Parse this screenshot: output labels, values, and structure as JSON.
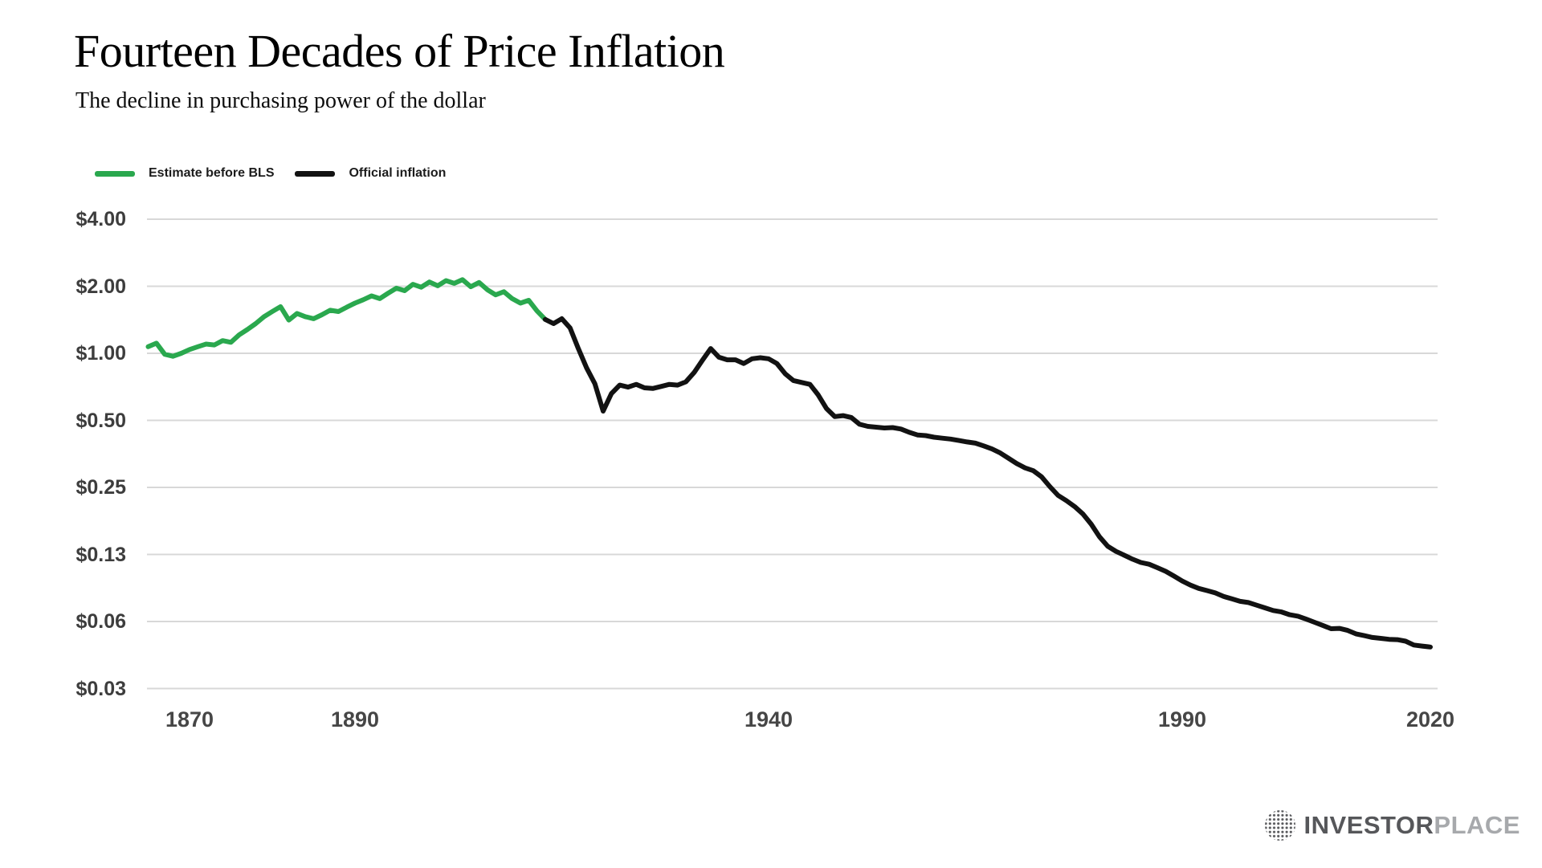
{
  "colors": {
    "accent_green": "#2aa84e",
    "line_black": "#121212",
    "grid": "#d8d8d8",
    "axis_label": "#3d3d3d",
    "logo_primary": "#56575a",
    "logo_secondary": "#a7a9ac"
  },
  "logo": {
    "brand_primary": "INVESTOR",
    "brand_secondary": "PLACE"
  },
  "chart_data": {
    "type": "line",
    "title": "Fourteen Decades of Price Inflation",
    "subtitle": "The decline in purchasing power of the dollar",
    "y_scale": "log2",
    "grid": "horizontal",
    "legend_position": "top-left",
    "xlim": [
      1864.8,
      2021
    ],
    "y_ticks": [
      {
        "label": "$4.00",
        "value": 4.0
      },
      {
        "label": "$2.00",
        "value": 2.0
      },
      {
        "label": "$1.00",
        "value": 1.0
      },
      {
        "label": "$0.50",
        "value": 0.5
      },
      {
        "label": "$0.25",
        "value": 0.25
      },
      {
        "label": "$0.13",
        "value": 0.125
      },
      {
        "label": "$0.06",
        "value": 0.0625
      },
      {
        "label": "$0.03",
        "value": 0.03125
      }
    ],
    "x_ticks": [
      {
        "label": "1870",
        "year": 1870
      },
      {
        "label": "1890",
        "year": 1890
      },
      {
        "label": "1940",
        "year": 1940
      },
      {
        "label": "1990",
        "year": 1990
      },
      {
        "label": "2020",
        "year": 2020
      }
    ],
    "series": [
      {
        "name": "Estimate before BLS",
        "color": "#2aa84e",
        "points": [
          [
            1865,
            1.07
          ],
          [
            1866,
            1.11
          ],
          [
            1867,
            0.99
          ],
          [
            1868,
            0.97
          ],
          [
            1869,
            1.0
          ],
          [
            1870,
            1.04
          ],
          [
            1871,
            1.07
          ],
          [
            1872,
            1.1
          ],
          [
            1873,
            1.09
          ],
          [
            1874,
            1.14
          ],
          [
            1875,
            1.12
          ],
          [
            1876,
            1.21
          ],
          [
            1877,
            1.28
          ],
          [
            1878,
            1.36
          ],
          [
            1879,
            1.46
          ],
          [
            1880,
            1.54
          ],
          [
            1881,
            1.62
          ],
          [
            1882,
            1.41
          ],
          [
            1883,
            1.51
          ],
          [
            1884,
            1.46
          ],
          [
            1885,
            1.43
          ],
          [
            1886,
            1.49
          ],
          [
            1887,
            1.56
          ],
          [
            1888,
            1.54
          ],
          [
            1889,
            1.61
          ],
          [
            1890,
            1.68
          ],
          [
            1891,
            1.74
          ],
          [
            1892,
            1.81
          ],
          [
            1893,
            1.76
          ],
          [
            1894,
            1.86
          ],
          [
            1895,
            1.96
          ],
          [
            1896,
            1.91
          ],
          [
            1897,
            2.04
          ],
          [
            1898,
            1.98
          ],
          [
            1899,
            2.09
          ],
          [
            1900,
            2.01
          ],
          [
            1901,
            2.12
          ],
          [
            1902,
            2.06
          ],
          [
            1903,
            2.14
          ],
          [
            1904,
            1.99
          ],
          [
            1905,
            2.08
          ],
          [
            1906,
            1.93
          ],
          [
            1907,
            1.83
          ],
          [
            1908,
            1.89
          ],
          [
            1909,
            1.76
          ],
          [
            1910,
            1.68
          ],
          [
            1911,
            1.73
          ],
          [
            1912,
            1.55
          ],
          [
            1913,
            1.42
          ]
        ]
      },
      {
        "name": "Official inflation",
        "color": "#121212",
        "points": [
          [
            1913,
            1.42
          ],
          [
            1914,
            1.36
          ],
          [
            1915,
            1.43
          ],
          [
            1916,
            1.3
          ],
          [
            1917,
            1.05
          ],
          [
            1918,
            0.86
          ],
          [
            1919,
            0.73
          ],
          [
            1920,
            0.55
          ],
          [
            1921,
            0.66
          ],
          [
            1922,
            0.72
          ],
          [
            1923,
            0.705
          ],
          [
            1924,
            0.725
          ],
          [
            1925,
            0.7
          ],
          [
            1926,
            0.695
          ],
          [
            1927,
            0.71
          ],
          [
            1928,
            0.725
          ],
          [
            1929,
            0.72
          ],
          [
            1930,
            0.745
          ],
          [
            1931,
            0.82
          ],
          [
            1932,
            0.93
          ],
          [
            1933,
            1.05
          ],
          [
            1934,
            0.96
          ],
          [
            1935,
            0.935
          ],
          [
            1936,
            0.935
          ],
          [
            1937,
            0.9
          ],
          [
            1938,
            0.945
          ],
          [
            1939,
            0.955
          ],
          [
            1940,
            0.945
          ],
          [
            1941,
            0.9
          ],
          [
            1942,
            0.81
          ],
          [
            1943,
            0.755
          ],
          [
            1944,
            0.74
          ],
          [
            1945,
            0.725
          ],
          [
            1946,
            0.65
          ],
          [
            1947,
            0.565
          ],
          [
            1948,
            0.52
          ],
          [
            1949,
            0.525
          ],
          [
            1950,
            0.515
          ],
          [
            1951,
            0.48
          ],
          [
            1952,
            0.47
          ],
          [
            1953,
            0.466
          ],
          [
            1954,
            0.462
          ],
          [
            1955,
            0.464
          ],
          [
            1956,
            0.457
          ],
          [
            1957,
            0.442
          ],
          [
            1958,
            0.43
          ],
          [
            1959,
            0.427
          ],
          [
            1960,
            0.42
          ],
          [
            1961,
            0.416
          ],
          [
            1962,
            0.412
          ],
          [
            1963,
            0.406
          ],
          [
            1964,
            0.4
          ],
          [
            1965,
            0.395
          ],
          [
            1966,
            0.384
          ],
          [
            1967,
            0.372
          ],
          [
            1968,
            0.357
          ],
          [
            1969,
            0.338
          ],
          [
            1970,
            0.32
          ],
          [
            1971,
            0.306
          ],
          [
            1972,
            0.297
          ],
          [
            1973,
            0.279
          ],
          [
            1974,
            0.252
          ],
          [
            1975,
            0.23
          ],
          [
            1976,
            0.218
          ],
          [
            1977,
            0.205
          ],
          [
            1978,
            0.19
          ],
          [
            1979,
            0.171
          ],
          [
            1980,
            0.15
          ],
          [
            1981,
            0.136
          ],
          [
            1982,
            0.129
          ],
          [
            1983,
            0.124
          ],
          [
            1984,
            0.119
          ],
          [
            1985,
            0.115
          ],
          [
            1986,
            0.113
          ],
          [
            1987,
            0.109
          ],
          [
            1988,
            0.105
          ],
          [
            1989,
            0.1
          ],
          [
            1990,
            0.095
          ],
          [
            1991,
            0.091
          ],
          [
            1992,
            0.088
          ],
          [
            1993,
            0.086
          ],
          [
            1994,
            0.084
          ],
          [
            1995,
            0.081
          ],
          [
            1996,
            0.079
          ],
          [
            1997,
            0.077
          ],
          [
            1998,
            0.076
          ],
          [
            1999,
            0.074
          ],
          [
            2000,
            0.072
          ],
          [
            2001,
            0.07
          ],
          [
            2002,
            0.069
          ],
          [
            2003,
            0.067
          ],
          [
            2004,
            0.066
          ],
          [
            2005,
            0.064
          ],
          [
            2006,
            0.062
          ],
          [
            2007,
            0.06
          ],
          [
            2008,
            0.058
          ],
          [
            2009,
            0.0582
          ],
          [
            2010,
            0.057
          ],
          [
            2011,
            0.055
          ],
          [
            2012,
            0.054
          ],
          [
            2013,
            0.053
          ],
          [
            2014,
            0.0525
          ],
          [
            2015,
            0.052
          ],
          [
            2016,
            0.0518
          ],
          [
            2017,
            0.051
          ],
          [
            2018,
            0.049
          ],
          [
            2019,
            0.0485
          ],
          [
            2020,
            0.048
          ]
        ]
      }
    ]
  }
}
